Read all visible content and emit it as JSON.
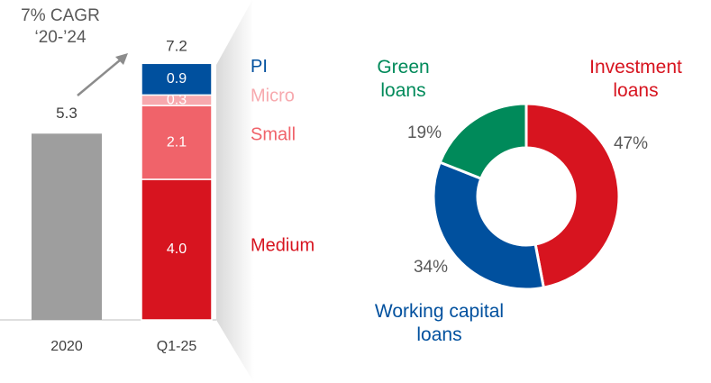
{
  "chart_data": [
    {
      "type": "bar",
      "annotation": "7% CAGR ‘20-’24",
      "categories": [
        "2020",
        "Q1-25"
      ],
      "series": [
        {
          "color": "#9e9e9e",
          "values": [
            5.3,
            null
          ]
        },
        {
          "name": "Medium",
          "color": "#d7141f",
          "values": [
            null,
            4.0
          ],
          "value_labels": [
            null,
            "4.0"
          ]
        },
        {
          "name": "Small",
          "color": "#f0636a",
          "values": [
            null,
            2.1
          ],
          "value_labels": [
            null,
            "2.1"
          ]
        },
        {
          "name": "Micro",
          "color": "#f7a9ae",
          "values": [
            null,
            0.3
          ],
          "value_labels": [
            null,
            "0.3"
          ]
        },
        {
          "name": "PI",
          "color": "#00509e",
          "values": [
            null,
            0.9
          ],
          "value_labels": [
            null,
            "0.9"
          ]
        }
      ],
      "totals": [
        5.3,
        7.2
      ],
      "ylim": [
        0,
        8
      ]
    },
    {
      "type": "pie",
      "categories": [
        "Investment loans",
        "Working capital loans",
        "Green loans"
      ],
      "values": [
        47,
        34,
        19
      ],
      "value_labels": [
        "47%",
        "34%",
        "19%"
      ],
      "colors": [
        "#d7141f",
        "#00509e",
        "#008a5a"
      ],
      "donut": true
    }
  ]
}
